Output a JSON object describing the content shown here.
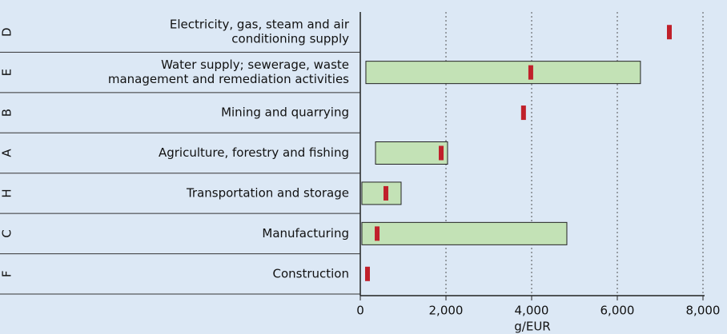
{
  "chart_data": {
    "type": "range-bar",
    "codes": [
      "D",
      "E",
      "B",
      "A",
      "H",
      "C",
      "F"
    ],
    "categories": [
      [
        "Electricity, gas, steam and air",
        "conditioning supply"
      ],
      [
        "Water supply; sewerage, waste",
        "management and remediation activities"
      ],
      [
        "Mining and quarrying"
      ],
      [
        "Agriculture, forestry and fishing"
      ],
      [
        "Transportation and storage"
      ],
      [
        "Manufacturing"
      ],
      [
        "Construction"
      ]
    ],
    "min": [
      null,
      130,
      null,
      355,
      37,
      37,
      null
    ],
    "max": [
      null,
      6540,
      null,
      2037,
      953,
      4822,
      null
    ],
    "marker": [
      7215,
      3980,
      3810,
      1888,
      598,
      393,
      168
    ],
    "bar_color": "#c3e2b6",
    "marker_color": "#c0202a",
    "xlim": [
      0,
      8000
    ],
    "xticks": [
      0,
      {
        "value": 2000,
        "label": "2,000"
      },
      {
        "value": 4000,
        "label": "4,000"
      },
      {
        "value": 6000,
        "label": "6,000"
      },
      {
        "value": 8000,
        "label": "8,000"
      }
    ],
    "xlabel": "g/EUR",
    "grid": true
  }
}
